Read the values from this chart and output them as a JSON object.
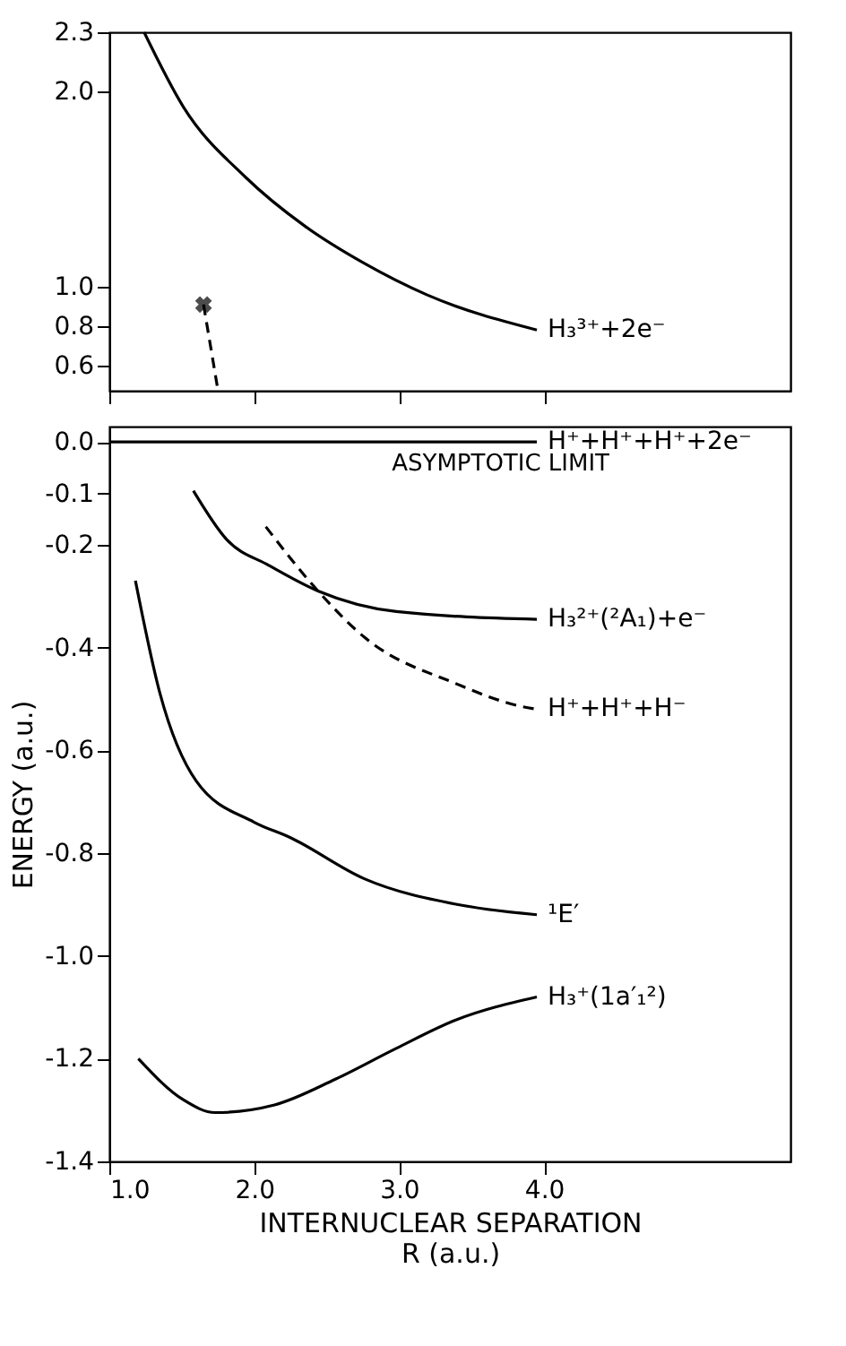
{
  "chart_data": [
    {
      "type": "line",
      "xlim": [
        1.0,
        5.7
      ],
      "ylim": [
        0.47,
        2.3
      ],
      "xticks": [
        {
          "value": 1,
          "label": null
        },
        {
          "value": 2,
          "label": null
        },
        {
          "value": 3,
          "label": null
        },
        {
          "value": 4,
          "label": null
        }
      ],
      "yticks": [
        {
          "value": 0.6,
          "label": "0.6"
        },
        {
          "value": 0.8,
          "label": "0.8"
        },
        {
          "value": 1.0,
          "label": "1.0"
        },
        {
          "value": 2.0,
          "label": "2.0"
        },
        {
          "value": 2.3,
          "label": "2.3"
        }
      ],
      "tick_labels": "y",
      "grid": false,
      "series": [
        {
          "name": "H₃³⁺+2e⁻",
          "color": "#000000",
          "line_style": "solid",
          "x": [
            1.24,
            1.51,
            1.94,
            2.35,
            2.76,
            3.19,
            3.95
          ],
          "values": [
            2.3,
            1.92,
            1.56,
            1.31,
            1.12,
            0.96,
            0.78
          ]
        },
        {
          "color": "#000000",
          "line_style": "dashed",
          "x": [
            1.65,
            1.75
          ],
          "values": [
            0.91,
            0.47
          ]
        },
        {
          "type": "scatter",
          "color": "#000000",
          "marker": "cross",
          "x": [
            1.65
          ],
          "values": [
            0.91
          ]
        }
      ]
    },
    {
      "type": "line",
      "xlabel": "INTERNUCLEAR SEPARATION\nR (a.u.)",
      "ylabel": "ENERGY (a.u.)",
      "xlim": [
        1.0,
        5.7
      ],
      "ylim": [
        -1.4,
        0.03
      ],
      "xticks": [
        {
          "value": 1,
          "label": "1.0"
        },
        {
          "value": 2,
          "label": "2.0"
        },
        {
          "value": 3,
          "label": "3.0"
        },
        {
          "value": 4,
          "label": "4.0"
        }
      ],
      "yticks": [
        {
          "value": 0,
          "label": "0.0"
        },
        {
          "value": -0.1,
          "label": "-0.1"
        },
        {
          "value": -0.2,
          "label": "-0.2"
        },
        {
          "value": -0.4,
          "label": "-0.4"
        },
        {
          "value": -0.6,
          "label": "-0.6"
        },
        {
          "value": -0.8,
          "label": "-0.8"
        },
        {
          "value": -1.0,
          "label": "-1.0"
        },
        {
          "value": -1.2,
          "label": "-1.2"
        },
        {
          "value": -1.4,
          "label": "-1.4"
        }
      ],
      "grid": false,
      "annotations": [
        {
          "text": "ASYMPTOTIC LIMIT",
          "x": 3.7,
          "y": 0
        }
      ],
      "series": [
        {
          "name": "H⁺+H⁺+H⁺+2e⁻",
          "color": "#000000",
          "line_style": "solid",
          "x": [
            1.0,
            3.95
          ],
          "values": [
            0,
            0
          ]
        },
        {
          "name": "H₃²⁺(²A₁)+e⁻",
          "color": "#000000",
          "line_style": "solid",
          "x": [
            1.58,
            1.81,
            2.1,
            2.44,
            2.98,
            3.95
          ],
          "values": [
            -0.095,
            -0.19,
            -0.24,
            -0.29,
            -0.33,
            -0.345
          ]
        },
        {
          "name": "H⁺+H⁺+H⁻",
          "color": "#000000",
          "line_style": "dashed",
          "x": [
            2.08,
            2.44,
            2.76,
            3.39,
            3.85,
            3.95
          ],
          "values": [
            -0.165,
            -0.29,
            -0.38,
            -0.47,
            -0.515,
            -0.52
          ]
        },
        {
          "name": "¹E′",
          "color": "#000000",
          "line_style": "solid",
          "x": [
            1.18,
            1.35,
            1.6,
            2.0,
            2.25,
            2.76,
            3.4,
            3.95
          ],
          "values": [
            -0.27,
            -0.49,
            -0.66,
            -0.74,
            -0.77,
            -0.85,
            -0.9,
            -0.92
          ]
        },
        {
          "name": "H₃⁺(1a′₁²)",
          "color": "#000000",
          "line_style": "solid",
          "x": [
            1.2,
            1.51,
            1.73,
            2.14,
            2.56,
            2.98,
            3.39,
            3.95
          ],
          "values": [
            -1.2,
            -1.28,
            -1.305,
            -1.29,
            -1.24,
            -1.18,
            -1.125,
            -1.08
          ]
        }
      ]
    }
  ]
}
